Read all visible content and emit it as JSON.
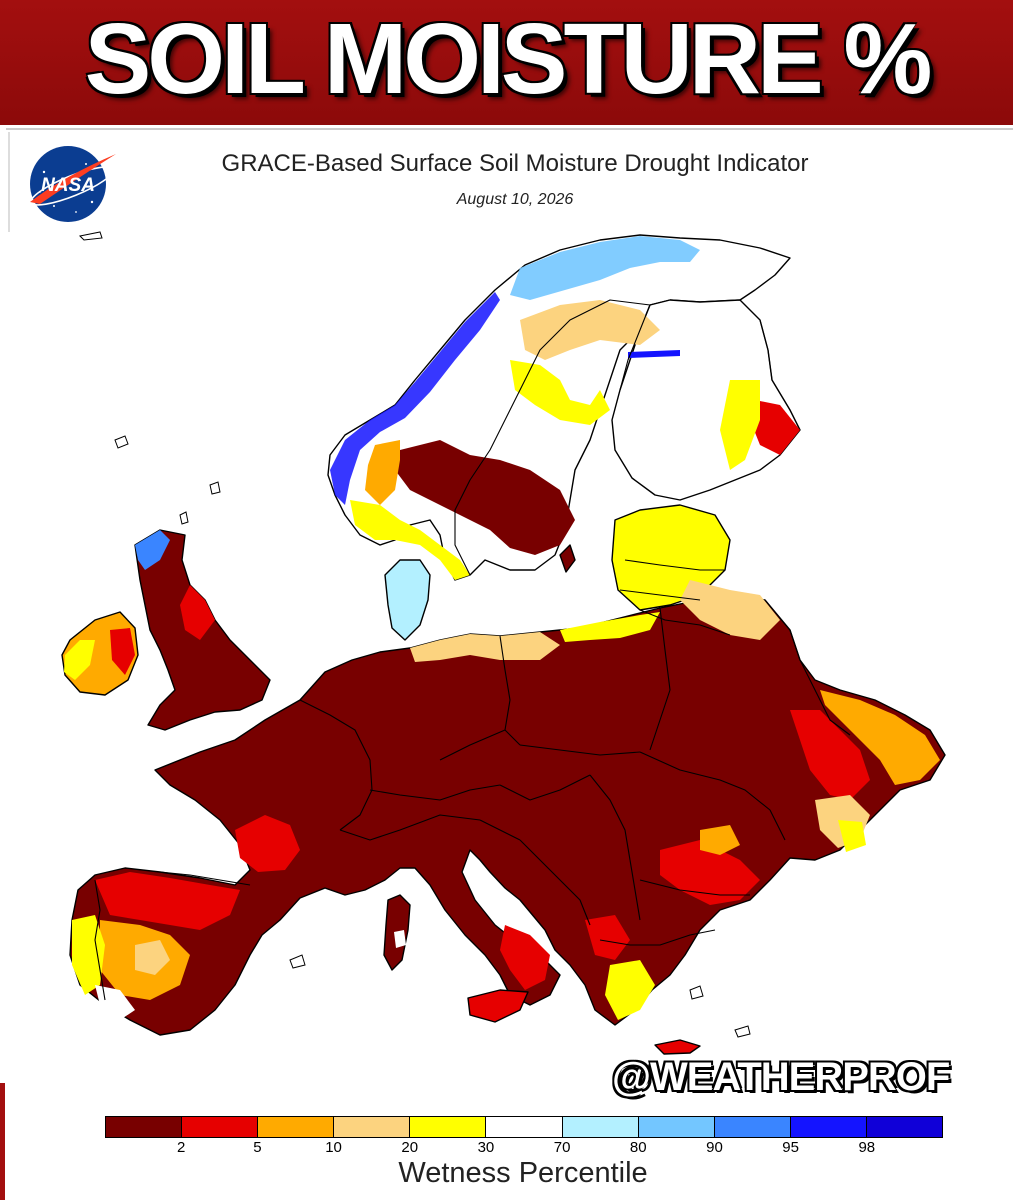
{
  "banner": {
    "title": "SOIL MOISTURE %"
  },
  "logo": {
    "text": "NASA"
  },
  "map": {
    "title": "GRACE-Based Surface Soil Moisture Drought Indicator",
    "date": "August 10, 2026",
    "region": "Europe"
  },
  "watermark": "@WEATHERPROF",
  "legend": {
    "title": "Wetness Percentile",
    "ticks": [
      "2",
      "5",
      "10",
      "20",
      "30",
      "70",
      "80",
      "90",
      "95",
      "98"
    ],
    "colors": [
      "#780000",
      "#e60000",
      "#ffaa00",
      "#fcd37f",
      "#ffff00",
      "#ffffff",
      "#b3f0ff",
      "#73c6ff",
      "#3a85ff",
      "#1414ff",
      "#1000d8"
    ]
  },
  "colors": {
    "banner": "#a30f0f",
    "land_default": "#780000",
    "border": "#000000"
  }
}
